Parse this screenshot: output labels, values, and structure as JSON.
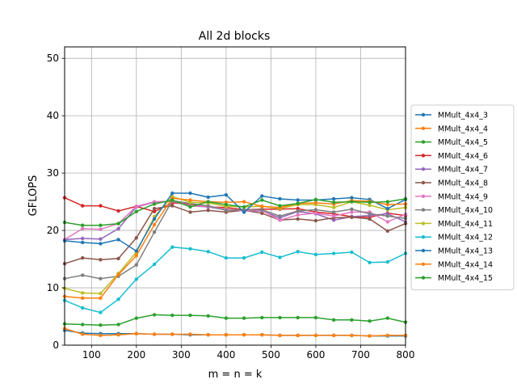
{
  "chart_data": {
    "type": "line",
    "title": "All 2d blocks",
    "xlabel": "m = n = k",
    "ylabel": "GFLOPS",
    "xlim": [
      40,
      800
    ],
    "ylim": [
      0,
      52
    ],
    "xticks": [
      100,
      200,
      300,
      400,
      500,
      600,
      700,
      800
    ],
    "yticks": [
      0,
      10,
      20,
      30,
      40,
      50
    ],
    "grid": true,
    "legend_position": "outside-right",
    "x": [
      40,
      80,
      120,
      160,
      200,
      240,
      280,
      320,
      360,
      400,
      440,
      480,
      520,
      560,
      600,
      640,
      680,
      720,
      760,
      800
    ],
    "series": [
      {
        "name": "MMult_4x4_3",
        "color": "#1f77b4",
        "values": [
          2.6,
          2.1,
          2.0,
          2.0,
          2.0,
          1.9,
          1.9,
          1.8,
          1.8,
          1.8,
          1.8,
          1.8,
          1.7,
          1.7,
          1.7,
          1.7,
          1.7,
          1.6,
          1.6,
          1.6
        ]
      },
      {
        "name": "MMult_4x4_4",
        "color": "#ff7f0e",
        "values": [
          2.9,
          1.9,
          1.7,
          1.8,
          2.0,
          1.9,
          1.9,
          1.9,
          1.8,
          1.8,
          1.8,
          1.8,
          1.7,
          1.7,
          1.7,
          1.7,
          1.7,
          1.6,
          1.7,
          1.7
        ]
      },
      {
        "name": "MMult_4x4_5",
        "color": "#2ca02c",
        "values": [
          3.7,
          3.6,
          3.5,
          3.6,
          4.7,
          5.3,
          5.2,
          5.2,
          5.1,
          4.7,
          4.7,
          4.8,
          4.8,
          4.8,
          4.8,
          4.4,
          4.4,
          4.2,
          4.7,
          4.0
        ]
      },
      {
        "name": "MMult_4x4_6",
        "color": "#d62728",
        "values": [
          25.7,
          24.3,
          24.3,
          23.4,
          24.2,
          23.3,
          24.8,
          24.6,
          24.1,
          24.0,
          23.6,
          23.7,
          23.7,
          23.8,
          23.2,
          22.9,
          22.4,
          22.3,
          23.0,
          22.6
        ]
      },
      {
        "name": "MMult_4x4_7",
        "color": "#9467bd",
        "values": [
          18.4,
          18.6,
          18.5,
          20.3,
          24.1,
          24.9,
          25.1,
          24.3,
          24.1,
          23.6,
          23.4,
          23.4,
          22.2,
          23.3,
          22.9,
          21.8,
          22.4,
          22.6,
          22.9,
          21.5
        ]
      },
      {
        "name": "MMult_4x4_8",
        "color": "#8c564b",
        "values": [
          14.2,
          15.2,
          14.9,
          15.1,
          18.7,
          23.8,
          24.3,
          23.2,
          23.5,
          23.2,
          23.5,
          23.0,
          21.8,
          22.0,
          21.7,
          22.2,
          22.3,
          22.0,
          19.9,
          21.2
        ]
      },
      {
        "name": "MMult_4x4_9",
        "color": "#e377c2",
        "values": [
          18.4,
          20.3,
          20.2,
          21.2,
          24.2,
          25.0,
          25.1,
          24.3,
          24.2,
          23.7,
          23.4,
          23.5,
          21.8,
          22.7,
          23.0,
          22.5,
          23.2,
          23.2,
          21.5,
          22.8
        ]
      },
      {
        "name": "MMult_4x4_10",
        "color": "#7f7f7f",
        "values": [
          11.6,
          12.2,
          11.6,
          12.0,
          14.0,
          19.7,
          25.2,
          24.7,
          24.3,
          23.5,
          23.6,
          23.6,
          22.5,
          23.4,
          23.6,
          23.2,
          23.7,
          22.9,
          22.5,
          22.1
        ]
      },
      {
        "name": "MMult_4x4_11",
        "color": "#bcbd22",
        "values": [
          9.9,
          9.1,
          9.0,
          12.5,
          16.2,
          22.4,
          25.9,
          24.9,
          24.8,
          24.2,
          24.1,
          24.2,
          23.8,
          24.5,
          24.5,
          24.0,
          25.0,
          24.4,
          23.6,
          24.0
        ]
      },
      {
        "name": "MMult_4x4_12",
        "color": "#17becf",
        "values": [
          7.8,
          6.5,
          5.7,
          8.0,
          11.5,
          14.1,
          17.1,
          16.8,
          16.3,
          15.2,
          15.2,
          16.2,
          15.3,
          16.3,
          15.8,
          16.0,
          16.2,
          14.4,
          14.5,
          16.0
        ]
      },
      {
        "name": "MMult_4x4_13",
        "color": "#1f77b4",
        "values": [
          18.2,
          17.9,
          17.7,
          18.4,
          16.4,
          22.0,
          26.5,
          26.5,
          25.8,
          26.2,
          23.2,
          26.0,
          25.5,
          25.3,
          25.3,
          25.5,
          25.7,
          25.4,
          23.8,
          25.4
        ]
      },
      {
        "name": "MMult_4x4_14",
        "color": "#ff7f0e",
        "values": [
          8.5,
          8.2,
          8.2,
          12.3,
          15.6,
          21.0,
          25.6,
          25.3,
          25.0,
          24.9,
          25.0,
          24.2,
          24.0,
          24.7,
          24.8,
          24.6,
          25.2,
          25.1,
          24.5,
          24.6
        ]
      },
      {
        "name": "MMult_4x4_15",
        "color": "#2ca02c",
        "values": [
          21.4,
          20.9,
          20.9,
          21.2,
          23.3,
          24.6,
          25.3,
          24.1,
          25.0,
          24.5,
          24.1,
          25.3,
          24.3,
          24.7,
          25.4,
          24.9,
          25.0,
          24.9,
          25.0,
          25.5
        ]
      }
    ]
  }
}
